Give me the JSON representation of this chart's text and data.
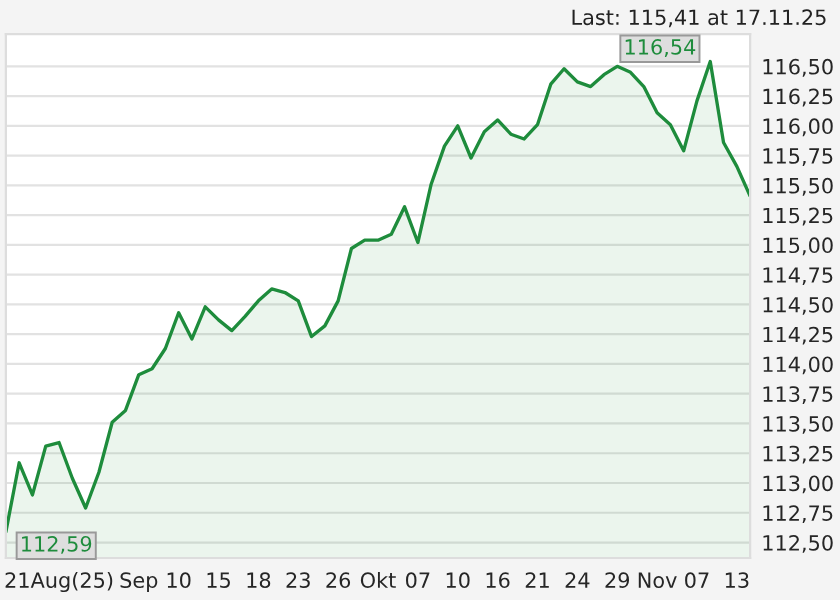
{
  "chart_data": {
    "type": "area",
    "categories": [
      null,
      null,
      null,
      null,
      "21Aug(25)",
      null,
      null,
      null,
      null,
      null,
      "Sep",
      null,
      null,
      "10",
      null,
      null,
      "15",
      null,
      null,
      "18",
      null,
      null,
      "23",
      null,
      null,
      "26",
      null,
      null,
      "Okt",
      null,
      null,
      "07",
      null,
      null,
      "10",
      null,
      null,
      "16",
      null,
      null,
      "21",
      null,
      null,
      "24",
      null,
      null,
      "29",
      null,
      null,
      "Nov",
      null,
      null,
      "07",
      null,
      null,
      "13",
      null
    ],
    "series": [
      {
        "color": "#1e8c3c",
        "values": [
          112.59,
          113.17,
          112.9,
          113.31,
          113.34,
          113.04,
          112.79,
          113.09,
          113.51,
          113.61,
          113.91,
          113.96,
          114.13,
          114.43,
          114.21,
          114.48,
          114.37,
          114.28,
          114.4,
          114.53,
          114.63,
          114.6,
          114.53,
          114.23,
          114.32,
          114.53,
          114.97,
          115.04,
          115.04,
          115.09,
          115.32,
          115.02,
          115.51,
          115.83,
          116.0,
          115.73,
          115.95,
          116.05,
          115.93,
          115.89,
          116.01,
          116.35,
          116.48,
          116.37,
          116.33,
          116.43,
          116.5,
          116.45,
          116.33,
          116.11,
          116.01,
          115.79,
          116.21,
          116.54,
          115.86,
          115.66,
          115.41
        ]
      }
    ],
    "ylim": [
      112.37,
      116.77
    ],
    "yticks": [
      {
        "value": 112.5,
        "label": "112,50"
      },
      {
        "value": 112.75,
        "label": "112,75"
      },
      {
        "value": 113.0,
        "label": "113,00"
      },
      {
        "value": 113.25,
        "label": "113,25"
      },
      {
        "value": 113.5,
        "label": "113,50"
      },
      {
        "value": 113.75,
        "label": "113,75"
      },
      {
        "value": 114.0,
        "label": "114,00"
      },
      {
        "value": 114.25,
        "label": "114,25"
      },
      {
        "value": 114.5,
        "label": "114,50"
      },
      {
        "value": 114.75,
        "label": "114,75"
      },
      {
        "value": 115.0,
        "label": "115,00"
      },
      {
        "value": 115.25,
        "label": "115,25"
      },
      {
        "value": 115.5,
        "label": "115,50"
      },
      {
        "value": 115.75,
        "label": "115,75"
      },
      {
        "value": 116.0,
        "label": "116,00"
      },
      {
        "value": 116.25,
        "label": "116,25"
      },
      {
        "value": 116.5,
        "label": "116,50"
      }
    ],
    "grid": "y",
    "annotations": [
      "Last: 115,41 at 17.11.25",
      "116,54",
      "112,59"
    ]
  }
}
